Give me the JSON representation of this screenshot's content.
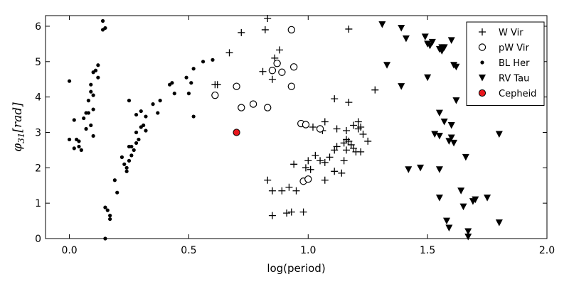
{
  "chart_data": {
    "type": "scatter",
    "title": "",
    "xlabel": "log(period)",
    "ylabel": "φ31[rad]",
    "ylabel_main": "φ",
    "ylabel_sub": "31",
    "ylabel_unit": "[rad]",
    "xlim": [
      -0.1,
      2.0
    ],
    "ylim": [
      0,
      6.3
    ],
    "xticks": [
      0.0,
      0.5,
      1.0,
      1.5,
      2.0
    ],
    "xtick_labels": [
      "0.0",
      "0.5",
      "1.0",
      "1.5",
      "2.0"
    ],
    "yticks": [
      0,
      1,
      2,
      3,
      4,
      5,
      6
    ],
    "ytick_labels": [
      "0",
      "1",
      "2",
      "3",
      "4",
      "5",
      "6"
    ],
    "grid": false,
    "legend_position": "top-right",
    "series": [
      {
        "name": "W Vir",
        "marker": "plus",
        "color": "#000000",
        "points": [
          [
            0.67,
            5.25
          ],
          [
            0.72,
            5.82
          ],
          [
            0.82,
            5.9
          ],
          [
            0.83,
            6.22
          ],
          [
            0.88,
            5.33
          ],
          [
            0.86,
            5.1
          ],
          [
            0.81,
            4.72
          ],
          [
            0.85,
            4.5
          ],
          [
            0.61,
            4.35
          ],
          [
            0.62,
            4.35
          ],
          [
            1.17,
            5.92
          ],
          [
            1.28,
            4.2
          ],
          [
            1.11,
            3.95
          ],
          [
            1.17,
            3.85
          ],
          [
            1.02,
            3.15
          ],
          [
            1.07,
            3.3
          ],
          [
            1.06,
            3.05
          ],
          [
            1.12,
            3.1
          ],
          [
            1.16,
            3.05
          ],
          [
            1.19,
            3.2
          ],
          [
            1.21,
            3.3
          ],
          [
            1.22,
            3.15
          ],
          [
            1.21,
            3.1
          ],
          [
            1.23,
            2.95
          ],
          [
            1.25,
            2.75
          ],
          [
            1.16,
            2.8
          ],
          [
            1.17,
            2.75
          ],
          [
            1.15,
            2.7
          ],
          [
            1.16,
            2.5
          ],
          [
            1.18,
            2.65
          ],
          [
            1.19,
            2.55
          ],
          [
            1.2,
            2.45
          ],
          [
            1.12,
            2.6
          ],
          [
            1.11,
            2.5
          ],
          [
            1.09,
            2.3
          ],
          [
            1.07,
            2.15
          ],
          [
            1.15,
            2.2
          ],
          [
            1.22,
            2.45
          ],
          [
            1.05,
            2.2
          ],
          [
            1.03,
            2.35
          ],
          [
            1.0,
            2.2
          ],
          [
            0.99,
            2.0
          ],
          [
            0.94,
            2.1
          ],
          [
            1.01,
            1.95
          ],
          [
            1.11,
            1.9
          ],
          [
            1.14,
            1.85
          ],
          [
            1.07,
            1.65
          ],
          [
            0.83,
            1.65
          ],
          [
            0.85,
            1.35
          ],
          [
            0.89,
            1.35
          ],
          [
            0.95,
            1.35
          ],
          [
            0.92,
            1.45
          ],
          [
            0.85,
            0.65
          ],
          [
            0.91,
            0.72
          ],
          [
            0.93,
            0.75
          ],
          [
            0.98,
            0.75
          ]
        ]
      },
      {
        "name": "pW Vir",
        "marker": "open-circle",
        "color": "#000000",
        "points": [
          [
            0.93,
            5.9
          ],
          [
            0.87,
            4.95
          ],
          [
            0.85,
            4.75
          ],
          [
            0.94,
            4.85
          ],
          [
            0.89,
            4.7
          ],
          [
            0.61,
            4.05
          ],
          [
            0.7,
            4.3
          ],
          [
            0.93,
            4.3
          ],
          [
            0.77,
            3.8
          ],
          [
            0.72,
            3.7
          ],
          [
            0.83,
            3.7
          ],
          [
            0.97,
            3.25
          ],
          [
            0.99,
            3.22
          ],
          [
            1.05,
            3.1
          ],
          [
            0.98,
            1.62
          ],
          [
            1.0,
            1.68
          ]
        ]
      },
      {
        "name": "BL Her",
        "marker": "dot",
        "color": "#000000",
        "points": [
          [
            0.14,
            6.15
          ],
          [
            0.15,
            5.95
          ],
          [
            0.14,
            5.9
          ],
          [
            0.12,
            4.9
          ],
          [
            0.11,
            4.75
          ],
          [
            0.1,
            4.7
          ],
          [
            0.12,
            4.55
          ],
          [
            0.09,
            4.35
          ],
          [
            0.09,
            4.15
          ],
          [
            0.1,
            4.05
          ],
          [
            0.08,
            3.9
          ],
          [
            0.1,
            3.65
          ],
          [
            0.07,
            3.55
          ],
          [
            0.08,
            3.55
          ],
          [
            0.06,
            3.4
          ],
          [
            0.09,
            3.2
          ],
          [
            0.07,
            3.1
          ],
          [
            0.1,
            2.9
          ],
          [
            0.0,
            4.45
          ],
          [
            0.02,
            3.35
          ],
          [
            0.0,
            2.8
          ],
          [
            0.03,
            2.8
          ],
          [
            0.04,
            2.75
          ],
          [
            0.04,
            2.6
          ],
          [
            0.02,
            2.55
          ],
          [
            0.05,
            2.5
          ],
          [
            0.15,
            0.88
          ],
          [
            0.16,
            0.8
          ],
          [
            0.17,
            0.65
          ],
          [
            0.17,
            0.55
          ],
          [
            0.15,
            0.0
          ],
          [
            0.19,
            1.65
          ],
          [
            0.2,
            1.3
          ],
          [
            0.22,
            2.3
          ],
          [
            0.23,
            2.1
          ],
          [
            0.24,
            2.0
          ],
          [
            0.24,
            1.9
          ],
          [
            0.25,
            2.2
          ],
          [
            0.26,
            2.35
          ],
          [
            0.27,
            2.5
          ],
          [
            0.25,
            2.6
          ],
          [
            0.26,
            2.6
          ],
          [
            0.28,
            2.7
          ],
          [
            0.29,
            2.8
          ],
          [
            0.28,
            3.0
          ],
          [
            0.3,
            3.15
          ],
          [
            0.31,
            3.2
          ],
          [
            0.32,
            3.05
          ],
          [
            0.28,
            3.5
          ],
          [
            0.25,
            3.9
          ],
          [
            0.3,
            3.6
          ],
          [
            0.32,
            3.45
          ],
          [
            0.35,
            3.8
          ],
          [
            0.37,
            3.55
          ],
          [
            0.38,
            3.9
          ],
          [
            0.42,
            4.35
          ],
          [
            0.43,
            4.4
          ],
          [
            0.44,
            4.1
          ],
          [
            0.49,
            4.55
          ],
          [
            0.5,
            4.1
          ],
          [
            0.51,
            4.4
          ],
          [
            0.52,
            4.8
          ],
          [
            0.52,
            3.45
          ],
          [
            0.56,
            5.0
          ],
          [
            0.6,
            5.05
          ]
        ]
      },
      {
        "name": "RV Tau",
        "marker": "triangle-down",
        "color": "#000000",
        "points": [
          [
            1.31,
            6.05
          ],
          [
            1.33,
            4.9
          ],
          [
            1.39,
            5.95
          ],
          [
            1.41,
            5.65
          ],
          [
            1.39,
            4.3
          ],
          [
            1.49,
            5.7
          ],
          [
            1.5,
            5.5
          ],
          [
            1.51,
            5.45
          ],
          [
            1.52,
            5.55
          ],
          [
            1.55,
            5.35
          ],
          [
            1.56,
            5.4
          ],
          [
            1.57,
            5.4
          ],
          [
            1.56,
            5.3
          ],
          [
            1.6,
            5.6
          ],
          [
            1.61,
            4.9
          ],
          [
            1.62,
            4.85
          ],
          [
            1.5,
            4.55
          ],
          [
            1.62,
            3.9
          ],
          [
            1.55,
            3.55
          ],
          [
            1.57,
            3.3
          ],
          [
            1.6,
            3.2
          ],
          [
            1.53,
            2.95
          ],
          [
            1.55,
            2.9
          ],
          [
            1.59,
            2.75
          ],
          [
            1.6,
            2.85
          ],
          [
            1.61,
            2.7
          ],
          [
            1.8,
            2.95
          ],
          [
            1.42,
            1.95
          ],
          [
            1.47,
            2.0
          ],
          [
            1.55,
            1.95
          ],
          [
            1.66,
            2.3
          ],
          [
            1.55,
            1.15
          ],
          [
            1.58,
            0.5
          ],
          [
            1.59,
            0.3
          ],
          [
            1.64,
            1.35
          ],
          [
            1.65,
            0.9
          ],
          [
            1.69,
            1.05
          ],
          [
            1.7,
            1.1
          ],
          [
            1.75,
            1.15
          ],
          [
            1.8,
            0.45
          ],
          [
            1.67,
            0.2
          ],
          [
            1.67,
            0.05
          ]
        ]
      },
      {
        "name": "Cepheid",
        "marker": "filled-circle",
        "color": "#e8161c",
        "points": [
          [
            0.7,
            3.0
          ]
        ]
      }
    ]
  }
}
